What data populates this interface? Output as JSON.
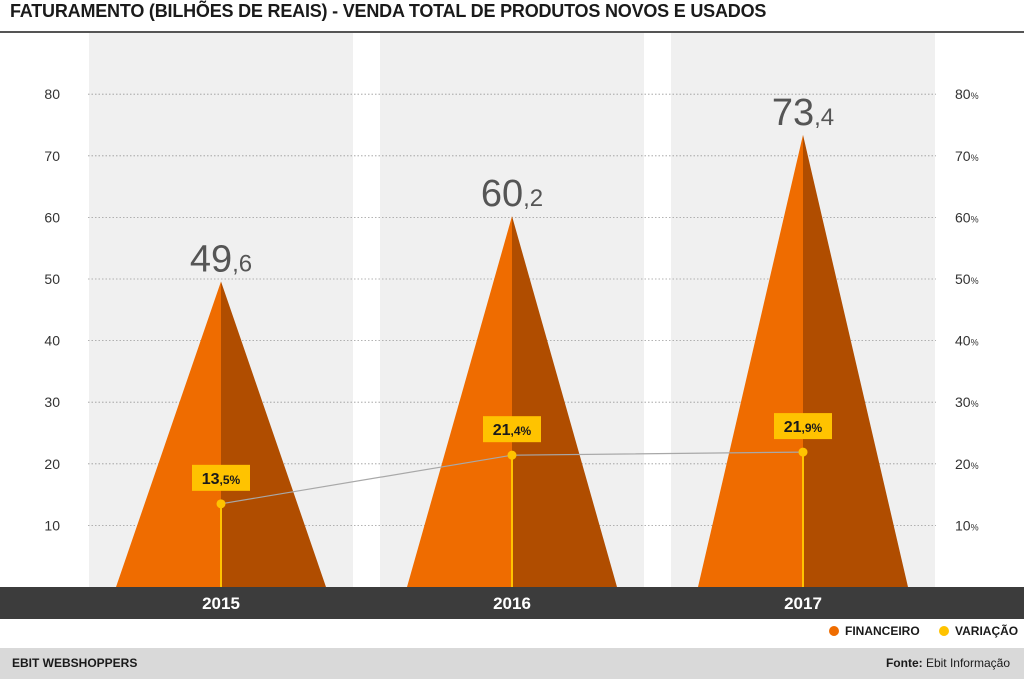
{
  "title": "FATURAMENTO (BILHÕES DE REAIS)  - VENDA TOTAL DE PRODUTOS NOVOS E USADOS",
  "footer": {
    "brand": "EBIT WEBSHOPPERS",
    "source_label": "Fonte:",
    "source_value": "Ebit Informação"
  },
  "legend": [
    {
      "label": "FINANCEIRO",
      "color": "#ef6c00"
    },
    {
      "label": "VARIAÇÃO",
      "color": "#ffc300"
    }
  ],
  "chart_data": {
    "type": "bar",
    "categories": [
      "2015",
      "2016",
      "2017"
    ],
    "series": [
      {
        "name": "FINANCEIRO",
        "values": [
          49.6,
          60.2,
          73.4
        ],
        "labels": [
          [
            "49",
            ",6"
          ],
          [
            "60",
            ",2"
          ],
          [
            "73",
            ",4"
          ]
        ]
      },
      {
        "name": "VARIAÇÃO",
        "values": [
          13.5,
          21.4,
          21.9
        ],
        "labels": [
          [
            "13",
            ",5%"
          ],
          [
            "21",
            ",4%"
          ],
          [
            "21",
            ",9%"
          ]
        ]
      }
    ],
    "y_left": {
      "ticks": [
        "10",
        "20",
        "30",
        "40",
        "50",
        "60",
        "70",
        "80"
      ],
      "range": [
        0,
        80
      ]
    },
    "y_right": {
      "ticks": [
        "10%",
        "20%",
        "30%",
        "40%",
        "50%",
        "60%",
        "70%",
        "80%"
      ],
      "range": [
        0,
        80
      ]
    },
    "grid": true,
    "colors": {
      "light": "#ef6c00",
      "dark": "#b04d00",
      "variation": "#ffc300",
      "axis_bar": "#3c3c3c",
      "panel": "#f0f0f0"
    }
  }
}
